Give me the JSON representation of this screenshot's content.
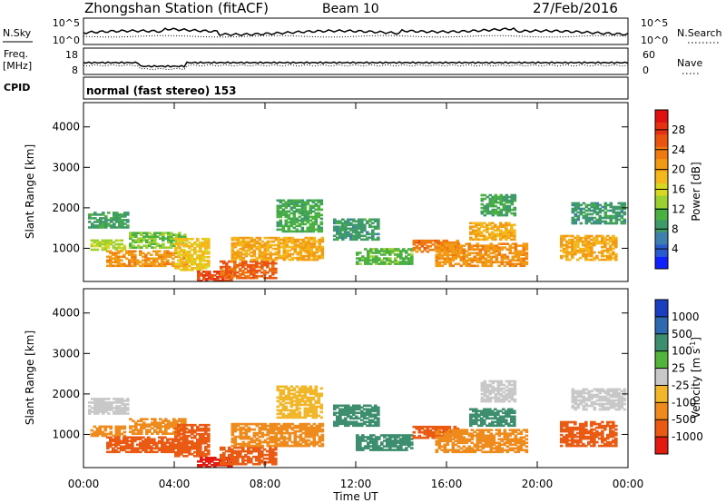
{
  "header": {
    "title": "Zhongshan Station (fitACF)",
    "beam": "Beam 10",
    "date": "27/Feb/2016"
  },
  "top_panels": {
    "nsky": {
      "left_label": "N.Sky",
      "right_label": "N.Search",
      "y_ticks_left": [
        "10^5",
        "10^0"
      ],
      "y_ticks_right": [
        "10^5",
        "10^0"
      ]
    },
    "freq": {
      "left_label": "Freq.",
      "left_unit": "[MHz]",
      "right_label": "Nave",
      "y_ticks_left": [
        "18",
        "8"
      ],
      "y_ticks_right": [
        "60",
        "0"
      ]
    },
    "cpid": {
      "label": "CPID",
      "text": "normal (fast stereo) 153"
    }
  },
  "chart_data": [
    {
      "type": "heatmap",
      "quantity": "Power",
      "ylabel": "Slant Range [km]",
      "xlabel": "",
      "ylim": [
        180,
        4600
      ],
      "xlim": [
        0,
        24
      ],
      "y_ticks": [
        1000,
        2000,
        3000,
        4000
      ],
      "colorbar": {
        "label": "Power [dB]",
        "ticks": [
          "4",
          "8",
          "12",
          "16",
          "20",
          "24",
          "28"
        ],
        "range": [
          0,
          32
        ],
        "colors": [
          "#1020ff",
          "#2a5bd0",
          "#3f7fb0",
          "#3f9a6a",
          "#4ab040",
          "#9ccf30",
          "#d8d820",
          "#f4b71c",
          "#f39a14",
          "#ee7a10",
          "#ea5410",
          "#e63010",
          "#e01010"
        ]
      },
      "regions": [
        {
          "t0": 0.2,
          "t1": 2.0,
          "r0": 1500,
          "r1": 1900,
          "v": 9
        },
        {
          "t0": 0.3,
          "t1": 1.8,
          "r0": 950,
          "r1": 1200,
          "v": 14
        },
        {
          "t0": 1.0,
          "t1": 4.5,
          "r0": 550,
          "r1": 950,
          "v": 22
        },
        {
          "t0": 2.0,
          "t1": 4.5,
          "r0": 1000,
          "r1": 1400,
          "v": 12
        },
        {
          "t0": 4.0,
          "t1": 5.5,
          "r0": 450,
          "r1": 1250,
          "v": 18
        },
        {
          "t0": 5.0,
          "t1": 6.5,
          "r0": 180,
          "r1": 450,
          "v": 28
        },
        {
          "t0": 6.0,
          "t1": 8.5,
          "r0": 250,
          "r1": 700,
          "v": 26
        },
        {
          "t0": 6.5,
          "t1": 10.5,
          "r0": 700,
          "r1": 1250,
          "v": 20
        },
        {
          "t0": 8.5,
          "t1": 10.5,
          "r0": 1400,
          "r1": 2200,
          "v": 10
        },
        {
          "t0": 11.0,
          "t1": 13.0,
          "r0": 1200,
          "r1": 1700,
          "v": 8
        },
        {
          "t0": 12.0,
          "t1": 14.5,
          "r0": 600,
          "r1": 1000,
          "v": 11
        },
        {
          "t0": 14.5,
          "t1": 16.5,
          "r0": 900,
          "r1": 1200,
          "v": 24
        },
        {
          "t0": 15.5,
          "t1": 19.5,
          "r0": 550,
          "r1": 1100,
          "v": 22
        },
        {
          "t0": 17.0,
          "t1": 19.0,
          "r0": 1200,
          "r1": 1650,
          "v": 20
        },
        {
          "t0": 17.5,
          "t1": 19.0,
          "r0": 1800,
          "r1": 2300,
          "v": 9
        },
        {
          "t0": 21.0,
          "t1": 23.5,
          "r0": 700,
          "r1": 1300,
          "v": 20
        },
        {
          "t0": 21.5,
          "t1": 23.8,
          "r0": 1600,
          "r1": 2100,
          "v": 8
        }
      ]
    },
    {
      "type": "heatmap",
      "quantity": "Velocity",
      "ylabel": "Slant Range [km]",
      "xlabel": "Time UT",
      "ylim": [
        180,
        4600
      ],
      "xlim": [
        0,
        24
      ],
      "y_ticks": [
        1000,
        2000,
        3000,
        4000
      ],
      "x_ticks": [
        "00:00",
        "04:00",
        "08:00",
        "12:00",
        "16:00",
        "20:00",
        "00:00"
      ],
      "colorbar": {
        "label": "Velocity [m s^-1]",
        "ticks": [
          "1000",
          "500",
          "100",
          "25",
          "-25",
          "-100",
          "-500",
          "-1000"
        ],
        "colors": [
          "#1a3ec0",
          "#2d6ab0",
          "#3d8e6f",
          "#52b43a",
          "#c8c8c8",
          "#f2b62b",
          "#ef8a1c",
          "#ea5a12",
          "#e21a10"
        ]
      },
      "regions": [
        {
          "t0": 0.2,
          "t1": 2.0,
          "r0": 1500,
          "r1": 1900,
          "v": 4
        },
        {
          "t0": 0.3,
          "t1": 1.8,
          "r0": 950,
          "r1": 1200,
          "v": 6
        },
        {
          "t0": 1.0,
          "t1": 4.5,
          "r0": 550,
          "r1": 950,
          "v": 7
        },
        {
          "t0": 2.0,
          "t1": 4.5,
          "r0": 1000,
          "r1": 1400,
          "v": 6
        },
        {
          "t0": 4.0,
          "t1": 5.5,
          "r0": 450,
          "r1": 1250,
          "v": 7
        },
        {
          "t0": 5.0,
          "t1": 6.5,
          "r0": 180,
          "r1": 450,
          "v": 8
        },
        {
          "t0": 6.0,
          "t1": 8.5,
          "r0": 250,
          "r1": 700,
          "v": 7
        },
        {
          "t0": 6.5,
          "t1": 10.5,
          "r0": 700,
          "r1": 1250,
          "v": 6
        },
        {
          "t0": 8.5,
          "t1": 10.5,
          "r0": 1400,
          "r1": 2200,
          "v": 5
        },
        {
          "t0": 11.0,
          "t1": 13.0,
          "r0": 1200,
          "r1": 1700,
          "v": 2
        },
        {
          "t0": 12.0,
          "t1": 14.5,
          "r0": 600,
          "r1": 1000,
          "v": 2
        },
        {
          "t0": 14.5,
          "t1": 16.5,
          "r0": 900,
          "r1": 1200,
          "v": 7
        },
        {
          "t0": 15.5,
          "t1": 19.5,
          "r0": 550,
          "r1": 1100,
          "v": 6
        },
        {
          "t0": 17.0,
          "t1": 19.0,
          "r0": 1200,
          "r1": 1650,
          "v": 2
        },
        {
          "t0": 17.5,
          "t1": 19.0,
          "r0": 1800,
          "r1": 2300,
          "v": 4
        },
        {
          "t0": 21.0,
          "t1": 23.5,
          "r0": 700,
          "r1": 1300,
          "v": 7
        },
        {
          "t0": 21.5,
          "t1": 23.8,
          "r0": 1600,
          "r1": 2100,
          "v": 4
        }
      ]
    }
  ]
}
